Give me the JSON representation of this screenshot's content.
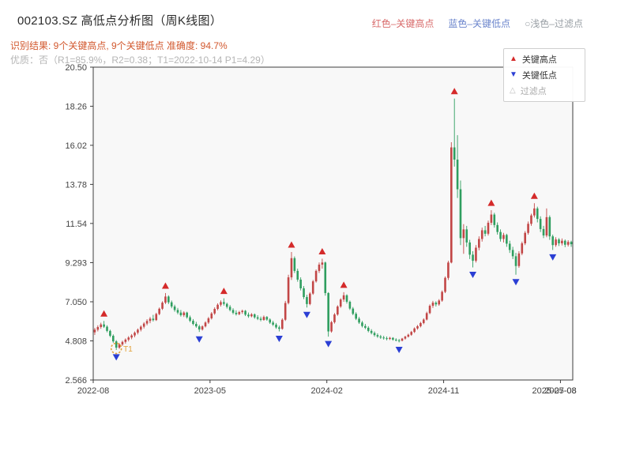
{
  "header": {
    "title": "002103.SZ 高低点分析图（周K线图）",
    "legend_top": {
      "high_label": "红色–关键高点",
      "high_color": "#d86a6a",
      "low_label": "蓝色–关键低点",
      "low_color": "#6b85cc",
      "filter_label": "○浅色–过滤点",
      "filter_color": "#9aa0a6"
    },
    "result_line": "识别结果: 9个关键高点, 9个关键低点  准确度: 94.7%",
    "result_color": "#d2582e",
    "quality_line": "优质：否（R1=85.9%，R2=0.38；T1=2022-10-14 P1=4.29）",
    "quality_color": "#b5b5b5"
  },
  "legend_box": {
    "items": [
      {
        "symbol": "▲",
        "label": "关键高点",
        "color": "#d42a2a",
        "muted": false
      },
      {
        "symbol": "▼",
        "label": "关键低点",
        "color": "#2b3fd4",
        "muted": false
      },
      {
        "symbol": "△",
        "label": "过滤点",
        "color": "#c0c0c0",
        "muted": true
      }
    ]
  },
  "chart_data": {
    "type": "candlestick",
    "period": "weekly",
    "ylim": [
      2.566,
      20.5
    ],
    "y_ticks": [
      "20.50",
      "18.26",
      "16.02",
      "13.78",
      "11.54",
      "9.293",
      "7.050",
      "4.808",
      "2.566"
    ],
    "x_ticks": [
      {
        "label": "2022-08",
        "week": 0,
        "tick": true
      },
      {
        "label": "2023-05",
        "week": 38,
        "tick": true
      },
      {
        "label": "2024-02",
        "week": 76,
        "tick": true
      },
      {
        "label": "2024-11",
        "week": 114,
        "tick": true
      },
      {
        "label": "2025-08",
        "week": 152,
        "tick": true
      },
      {
        "label": "2025-07-08",
        "week": 150,
        "tick": false
      }
    ],
    "colors": {
      "up": "#c24646",
      "down": "#2f9e5f",
      "key_high": "#d42a2a",
      "key_low": "#2b3fd4",
      "t1": "#e2a23c",
      "plot_bg": "#f8f8f8",
      "axis": "#444444",
      "border": "#3c3c3c"
    },
    "candles": [
      [
        5.3,
        5.55,
        5.15,
        5.45
      ],
      [
        5.45,
        5.7,
        5.35,
        5.6
      ],
      [
        5.6,
        5.85,
        5.5,
        5.75
      ],
      [
        5.75,
        5.95,
        5.55,
        5.62
      ],
      [
        5.62,
        5.7,
        5.3,
        5.38
      ],
      [
        5.38,
        5.45,
        5.02,
        5.1
      ],
      [
        5.1,
        5.18,
        4.7,
        4.78
      ],
      [
        4.78,
        4.85,
        4.29,
        4.42
      ],
      [
        4.42,
        4.68,
        4.35,
        4.6
      ],
      [
        4.6,
        4.82,
        4.52,
        4.75
      ],
      [
        4.75,
        4.95,
        4.65,
        4.88
      ],
      [
        4.88,
        5.08,
        4.78,
        5.0
      ],
      [
        5.0,
        5.2,
        4.9,
        5.12
      ],
      [
        5.12,
        5.35,
        5.02,
        5.28
      ],
      [
        5.28,
        5.52,
        5.18,
        5.45
      ],
      [
        5.45,
        5.7,
        5.35,
        5.62
      ],
      [
        5.62,
        5.88,
        5.52,
        5.8
      ],
      [
        5.8,
        6.05,
        5.7,
        5.95
      ],
      [
        5.95,
        6.18,
        5.82,
        6.08
      ],
      [
        6.08,
        6.3,
        5.92,
        6.0
      ],
      [
        6.0,
        6.42,
        5.95,
        6.35
      ],
      [
        6.35,
        6.72,
        6.28,
        6.65
      ],
      [
        6.65,
        7.08,
        6.58,
        7.0
      ],
      [
        7.0,
        7.55,
        6.92,
        7.35
      ],
      [
        7.35,
        7.42,
        6.92,
        7.02
      ],
      [
        7.02,
        7.12,
        6.68,
        6.78
      ],
      [
        6.78,
        6.88,
        6.48,
        6.58
      ],
      [
        6.58,
        6.7,
        6.33,
        6.43
      ],
      [
        6.43,
        6.58,
        6.2,
        6.28
      ],
      [
        6.28,
        6.5,
        6.18,
        6.43
      ],
      [
        6.43,
        6.48,
        6.08,
        6.16
      ],
      [
        6.16,
        6.26,
        5.88,
        5.96
      ],
      [
        5.96,
        6.06,
        5.7,
        5.78
      ],
      [
        5.78,
        5.9,
        5.56,
        5.64
      ],
      [
        5.64,
        5.73,
        5.32,
        5.46
      ],
      [
        5.46,
        5.7,
        5.4,
        5.64
      ],
      [
        5.64,
        5.93,
        5.58,
        5.86
      ],
      [
        5.86,
        6.18,
        5.78,
        6.1
      ],
      [
        6.1,
        6.46,
        6.03,
        6.38
      ],
      [
        6.38,
        6.73,
        6.3,
        6.64
      ],
      [
        6.64,
        6.96,
        6.56,
        6.88
      ],
      [
        6.88,
        7.13,
        6.78,
        7.03
      ],
      [
        7.03,
        7.25,
        6.83,
        6.93
      ],
      [
        6.93,
        7.0,
        6.66,
        6.76
      ],
      [
        6.76,
        6.86,
        6.5,
        6.58
      ],
      [
        6.58,
        6.68,
        6.33,
        6.42
      ],
      [
        6.42,
        6.56,
        6.26,
        6.34
      ],
      [
        6.34,
        6.53,
        6.28,
        6.46
      ],
      [
        6.46,
        6.6,
        6.36,
        6.53
      ],
      [
        6.53,
        6.58,
        6.23,
        6.31
      ],
      [
        6.31,
        6.43,
        6.13,
        6.22
      ],
      [
        6.22,
        6.4,
        6.16,
        6.33
      ],
      [
        6.33,
        6.38,
        6.08,
        6.16
      ],
      [
        6.16,
        6.28,
        6.0,
        6.08
      ],
      [
        6.08,
        6.2,
        5.93,
        6.01
      ],
      [
        6.01,
        6.26,
        5.96,
        6.18
      ],
      [
        6.18,
        6.23,
        5.96,
        6.03
      ],
      [
        6.03,
        6.1,
        5.78,
        5.86
      ],
      [
        5.86,
        5.96,
        5.66,
        5.74
      ],
      [
        5.74,
        5.83,
        5.5,
        5.58
      ],
      [
        5.58,
        5.68,
        5.35,
        5.5
      ],
      [
        5.5,
        6.1,
        5.45,
        6.02
      ],
      [
        6.02,
        7.1,
        5.95,
        6.98
      ],
      [
        6.98,
        8.6,
        6.9,
        8.45
      ],
      [
        8.45,
        9.9,
        8.3,
        9.55
      ],
      [
        9.55,
        9.65,
        8.7,
        8.82
      ],
      [
        8.82,
        8.95,
        8.2,
        8.32
      ],
      [
        8.32,
        8.45,
        7.7,
        7.82
      ],
      [
        7.82,
        7.95,
        7.2,
        7.32
      ],
      [
        7.32,
        7.45,
        6.72,
        6.92
      ],
      [
        6.92,
        7.6,
        6.85,
        7.52
      ],
      [
        7.52,
        8.3,
        7.45,
        8.22
      ],
      [
        8.22,
        8.9,
        8.15,
        8.82
      ],
      [
        8.82,
        9.3,
        8.7,
        9.18
      ],
      [
        9.18,
        9.52,
        8.95,
        9.3
      ],
      [
        9.3,
        9.35,
        7.4,
        7.55
      ],
      [
        7.55,
        7.6,
        5.05,
        5.35
      ],
      [
        5.35,
        5.95,
        5.28,
        5.88
      ],
      [
        5.88,
        6.4,
        5.8,
        6.32
      ],
      [
        6.32,
        6.85,
        6.25,
        6.78
      ],
      [
        6.78,
        7.25,
        6.7,
        7.18
      ],
      [
        7.18,
        7.6,
        7.05,
        7.42
      ],
      [
        7.42,
        7.48,
        6.95,
        7.05
      ],
      [
        7.05,
        7.12,
        6.58,
        6.66
      ],
      [
        6.66,
        6.75,
        6.28,
        6.36
      ],
      [
        6.36,
        6.45,
        6.0,
        6.08
      ],
      [
        6.08,
        6.18,
        5.78,
        5.86
      ],
      [
        5.86,
        5.95,
        5.58,
        5.66
      ],
      [
        5.66,
        5.78,
        5.48,
        5.56
      ],
      [
        5.56,
        5.65,
        5.3,
        5.38
      ],
      [
        5.38,
        5.48,
        5.18,
        5.26
      ],
      [
        5.26,
        5.35,
        5.05,
        5.14
      ],
      [
        5.14,
        5.24,
        4.98,
        5.06
      ],
      [
        5.06,
        5.15,
        4.92,
        5.0
      ],
      [
        5.0,
        5.1,
        4.88,
        4.96
      ],
      [
        4.96,
        5.06,
        4.84,
        4.92
      ],
      [
        4.92,
        5.04,
        4.86,
        4.98
      ],
      [
        4.98,
        5.02,
        4.82,
        4.88
      ],
      [
        4.88,
        4.96,
        4.78,
        4.84
      ],
      [
        4.84,
        4.92,
        4.72,
        4.82
      ],
      [
        4.82,
        4.98,
        4.78,
        4.94
      ],
      [
        4.94,
        5.1,
        4.88,
        5.05
      ],
      [
        5.05,
        5.22,
        5.0,
        5.16
      ],
      [
        5.16,
        5.38,
        5.1,
        5.32
      ],
      [
        5.32,
        5.58,
        5.26,
        5.52
      ],
      [
        5.52,
        5.72,
        5.45,
        5.65
      ],
      [
        5.65,
        5.9,
        5.58,
        5.83
      ],
      [
        5.83,
        6.1,
        5.76,
        6.03
      ],
      [
        6.03,
        6.48,
        5.98,
        6.4
      ],
      [
        6.4,
        6.9,
        6.34,
        6.82
      ],
      [
        6.82,
        7.1,
        6.7,
        7.0
      ],
      [
        7.0,
        7.08,
        6.78,
        6.9
      ],
      [
        6.9,
        7.2,
        6.82,
        7.12
      ],
      [
        7.12,
        7.7,
        7.05,
        7.62
      ],
      [
        7.62,
        8.5,
        7.55,
        8.42
      ],
      [
        8.42,
        9.4,
        8.3,
        9.3
      ],
      [
        9.3,
        16.2,
        9.25,
        15.9
      ],
      [
        15.9,
        18.7,
        14.8,
        15.2
      ],
      [
        15.2,
        16.6,
        13.0,
        13.5
      ],
      [
        13.5,
        14.0,
        10.3,
        10.7
      ],
      [
        10.7,
        11.5,
        9.8,
        11.2
      ],
      [
        11.2,
        11.4,
        10.2,
        10.45
      ],
      [
        10.45,
        10.6,
        9.5,
        9.75
      ],
      [
        9.75,
        9.95,
        9.02,
        9.4
      ],
      [
        9.4,
        10.3,
        9.3,
        10.15
      ],
      [
        10.15,
        10.8,
        10.0,
        10.65
      ],
      [
        10.65,
        11.3,
        10.5,
        11.15
      ],
      [
        11.15,
        11.4,
        10.8,
        10.95
      ],
      [
        10.95,
        11.7,
        10.85,
        11.58
      ],
      [
        11.58,
        12.3,
        11.45,
        12.05
      ],
      [
        12.05,
        12.15,
        11.3,
        11.45
      ],
      [
        11.45,
        11.6,
        10.9,
        11.05
      ],
      [
        11.05,
        11.2,
        10.5,
        10.65
      ],
      [
        10.65,
        11.0,
        10.45,
        10.88
      ],
      [
        10.88,
        10.95,
        10.2,
        10.38
      ],
      [
        10.38,
        10.55,
        9.85,
        10.02
      ],
      [
        10.02,
        10.2,
        9.5,
        9.66
      ],
      [
        9.66,
        9.85,
        8.6,
        9.1
      ],
      [
        9.1,
        9.95,
        9.0,
        9.82
      ],
      [
        9.82,
        10.5,
        9.72,
        10.4
      ],
      [
        10.4,
        11.1,
        10.3,
        11.0
      ],
      [
        11.0,
        11.65,
        10.9,
        11.52
      ],
      [
        11.52,
        12.1,
        11.4,
        12.0
      ],
      [
        12.0,
        12.7,
        11.88,
        12.4
      ],
      [
        12.4,
        12.5,
        11.6,
        11.8
      ],
      [
        11.8,
        11.95,
        11.05,
        11.22
      ],
      [
        11.22,
        11.4,
        10.7,
        10.85
      ],
      [
        10.85,
        12.4,
        10.75,
        11.9
      ],
      [
        11.9,
        12.0,
        10.6,
        10.8
      ],
      [
        10.8,
        10.9,
        10.02,
        10.3
      ],
      [
        10.3,
        10.75,
        10.2,
        10.62
      ],
      [
        10.62,
        10.7,
        10.25,
        10.4
      ],
      [
        10.4,
        10.68,
        10.28,
        10.55
      ],
      [
        10.55,
        10.62,
        10.18,
        10.32
      ],
      [
        10.32,
        10.58,
        10.22,
        10.48
      ],
      [
        10.48,
        10.55,
        10.2,
        10.35
      ]
    ],
    "key_highs": [
      {
        "week": 3,
        "price": 5.95
      },
      {
        "week": 23,
        "price": 7.55
      },
      {
        "week": 42,
        "price": 7.25
      },
      {
        "week": 64,
        "price": 9.9
      },
      {
        "week": 74,
        "price": 9.52
      },
      {
        "week": 81,
        "price": 7.6
      },
      {
        "week": 117,
        "price": 18.7
      },
      {
        "week": 129,
        "price": 12.3
      },
      {
        "week": 143,
        "price": 12.7
      }
    ],
    "key_lows": [
      {
        "week": 7,
        "price": 4.29
      },
      {
        "week": 34,
        "price": 5.32
      },
      {
        "week": 60,
        "price": 5.35
      },
      {
        "week": 69,
        "price": 6.72
      },
      {
        "week": 76,
        "price": 5.05
      },
      {
        "week": 99,
        "price": 4.72
      },
      {
        "week": 123,
        "price": 9.02
      },
      {
        "week": 137,
        "price": 8.6
      },
      {
        "week": 149,
        "price": 10.02
      }
    ],
    "filtered_points": [],
    "annotations": {
      "t1": {
        "week": 7,
        "price": 4.29,
        "label": "T1"
      }
    }
  }
}
